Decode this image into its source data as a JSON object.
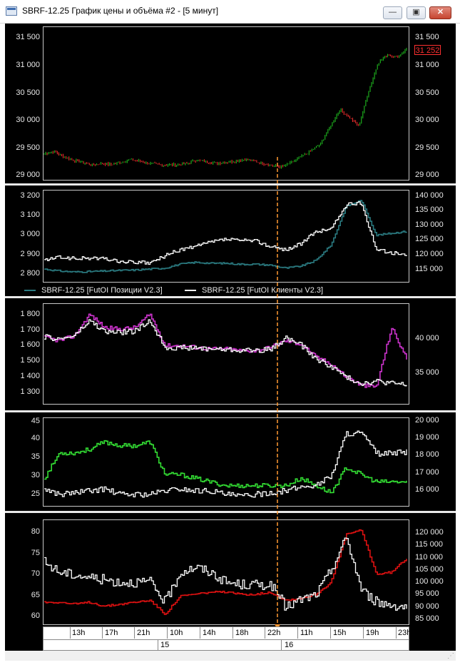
{
  "window": {
    "title": "SBRF-12.25 График цены и объёма #2 - [5 минут]",
    "minimize_label": "—",
    "restore_label": "▣",
    "close_label": "✕"
  },
  "colors": {
    "background": "#000000",
    "candle_up": "#22cc22",
    "candle_down": "#ff3030",
    "positions_line": "#2a7a80",
    "clients_line": "#ffffff",
    "magenta_line": "#cc33cc",
    "green_line": "#33dd33",
    "red_line": "#dd1111",
    "cursor_line": "#ff9933"
  },
  "price_pane": {
    "left_ticks": [
      "31 500",
      "31 000",
      "30 500",
      "30 000",
      "29 500",
      "29 000"
    ],
    "right_ticks": [
      "31 500",
      "31 000",
      "30 500",
      "30 000",
      "29 500",
      "29 000"
    ],
    "current_price": "31 252"
  },
  "pane2": {
    "left_ticks": [
      "3 200",
      "3 100",
      "3 000",
      "2 900",
      "2 800"
    ],
    "right_ticks": [
      "140 000",
      "135 000",
      "130 000",
      "125 000",
      "120 000",
      "115 000"
    ],
    "legend": [
      {
        "label": "SBRF-12.25 [FutOI Позиции V2.3]",
        "color": "#2a7a80"
      },
      {
        "label": "SBRF-12.25 [FutOI Клиенты V2.3]",
        "color": "#ffffff"
      }
    ]
  },
  "pane3": {
    "left_ticks": [
      "1 800",
      "1 700",
      "1 600",
      "1 500",
      "1 400",
      "1 300"
    ],
    "right_ticks": [
      "40 000",
      "35 000"
    ]
  },
  "pane4": {
    "left_ticks": [
      "45",
      "40",
      "35",
      "30",
      "25"
    ],
    "right_ticks": [
      "20 000",
      "19 000",
      "18 000",
      "17 000",
      "16 000"
    ]
  },
  "pane5": {
    "left_ticks": [
      "80",
      "75",
      "70",
      "65",
      "60"
    ],
    "right_ticks": [
      "120 000",
      "115 000",
      "110 000",
      "105 000",
      "100 000",
      "95 000",
      "90 000",
      "85 000"
    ]
  },
  "time_axis": {
    "hours": [
      "13h",
      "17h",
      "21h",
      "10h",
      "14h",
      "18h",
      "22h",
      "11h",
      "15h",
      "19h",
      "23h"
    ],
    "dates": [
      "15",
      "16"
    ]
  },
  "chart_data": [
    {
      "type": "candlestick",
      "title": "",
      "ylim": [
        29000,
        31600
      ],
      "x_hours": [
        "13h",
        "17h",
        "21h",
        "10h",
        "14h",
        "18h",
        "22h",
        "11h",
        "15h",
        "19h",
        "23h"
      ],
      "close_path": [
        29430,
        29470,
        29380,
        29320,
        29280,
        29230,
        29260,
        29240,
        29280,
        29330,
        29300,
        29260,
        29240,
        29230,
        29240,
        29260,
        29320,
        29290,
        29260,
        29280,
        29300,
        29330,
        29300,
        29260,
        29220,
        29200,
        29280,
        29380,
        29480,
        29600,
        29900,
        30200,
        30060,
        29900,
        30500,
        31000,
        31150,
        31100,
        31252
      ],
      "last": 31252
    },
    {
      "type": "line",
      "series": [
        {
          "name": "SBRF-12.25 [FutOI Позиции V2.3]",
          "axis": "left",
          "ylim": [
            2770,
            3220
          ],
          "values": [
            2825,
            2815,
            2810,
            2812,
            2815,
            2818,
            2820,
            2825,
            2830,
            2850,
            2860,
            2855,
            2855,
            2850,
            2850,
            2845,
            2830,
            2840,
            2870,
            2950,
            3150,
            3180,
            3000,
            3010,
            3020
          ]
        },
        {
          "name": "SBRF-12.25 [FutOI Клиенты V2.3]",
          "axis": "right",
          "ylim": [
            112000,
            141000
          ],
          "values": [
            118500,
            119500,
            119000,
            119200,
            119000,
            118000,
            117800,
            117500,
            120000,
            122000,
            123000,
            124500,
            125500,
            125000,
            125000,
            123000,
            122000,
            124000,
            128000,
            129000,
            137000,
            137500,
            122000,
            121000,
            120000
          ]
        }
      ]
    },
    {
      "type": "line",
      "series": [
        {
          "axis": "left",
          "ylim": [
            1250,
            1830
          ],
          "values": [
            1640,
            1620,
            1650,
            1780,
            1700,
            1690,
            1700,
            1780,
            1590,
            1590,
            1580,
            1570,
            1570,
            1560,
            1560,
            1580,
            1620,
            1600,
            1520,
            1480,
            1400,
            1350,
            1340,
            1700,
            1510
          ]
        },
        {
          "axis": "right",
          "ylim": [
            31000,
            44000
          ],
          "values": [
            39800,
            39500,
            40000,
            42000,
            40500,
            40400,
            40600,
            42000,
            38400,
            38300,
            38300,
            38200,
            38100,
            38000,
            38000,
            38100,
            39700,
            38700,
            36800,
            35800,
            34300,
            33500,
            33800,
            33500,
            33300
          ]
        }
      ]
    },
    {
      "type": "line",
      "series": [
        {
          "axis": "left",
          "ylim": [
            23,
            46
          ],
          "values": [
            30,
            37,
            37,
            38,
            40,
            39,
            39,
            40,
            31,
            31,
            30,
            29,
            28,
            28,
            28,
            28,
            28,
            30,
            28,
            26,
            33,
            31,
            29,
            29,
            29
          ]
        },
        {
          "axis": "right",
          "ylim": [
            15500,
            20000
          ],
          "values": [
            16300,
            16000,
            16100,
            16200,
            16300,
            16000,
            16000,
            16000,
            16200,
            16300,
            16200,
            16200,
            16000,
            15900,
            16000,
            16100,
            16200,
            16400,
            16500,
            17000,
            19300,
            19300,
            18200,
            18200,
            18300
          ]
        }
      ]
    },
    {
      "type": "line",
      "series": [
        {
          "axis": "left",
          "ylim": [
            58,
            83
          ],
          "values": [
            63,
            63,
            62.5,
            63,
            62,
            62.5,
            63,
            63.5,
            60,
            64.5,
            65,
            65.5,
            65.5,
            65,
            65,
            65.5,
            63.5,
            64,
            65,
            68,
            80,
            81,
            70,
            70.5,
            74
          ]
        },
        {
          "axis": "right",
          "ylim": [
            84000,
            124000
          ],
          "values": [
            108000,
            104000,
            103000,
            102000,
            101000,
            100000,
            100000,
            100000,
            92000,
            104000,
            106000,
            104000,
            100000,
            99000,
            99000,
            99000,
            90000,
            93000,
            95000,
            105000,
            118000,
            97000,
            92000,
            91000,
            90000
          ]
        }
      ]
    }
  ]
}
